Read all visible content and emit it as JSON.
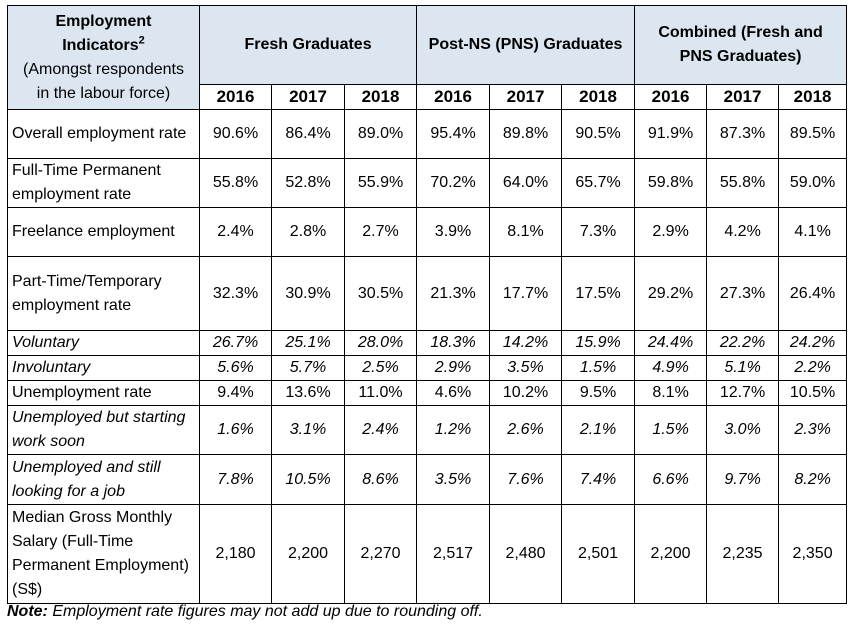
{
  "header": {
    "indicator_title": "Employment Indicators",
    "indicator_sup": "2",
    "indicator_sub_1": "(Amongst respondents",
    "indicator_sub_2": "in the labour force)",
    "groups": [
      "Fresh Graduates",
      "Post-NS (PNS) Graduates",
      "Combined (Fresh and PNS Graduates)"
    ],
    "years": [
      "2016",
      "2017",
      "2018",
      "2016",
      "2017",
      "2018",
      "2016",
      "2017",
      "2018"
    ]
  },
  "rows": [
    {
      "label": "Overall employment rate",
      "italic": false,
      "values": [
        "90.6%",
        "86.4%",
        "89.0%",
        "95.4%",
        "89.8%",
        "90.5%",
        "91.9%",
        "87.3%",
        "89.5%"
      ]
    },
    {
      "label": "Full-Time Permanent employment rate",
      "italic": false,
      "values": [
        "55.8%",
        "52.8%",
        "55.9%",
        "70.2%",
        "64.0%",
        "65.7%",
        "59.8%",
        "55.8%",
        "59.0%"
      ]
    },
    {
      "label": "Freelance employment",
      "italic": false,
      "values": [
        "2.4%",
        "2.8%",
        "2.7%",
        "3.9%",
        "8.1%",
        "7.3%",
        "2.9%",
        "4.2%",
        "4.1%"
      ]
    },
    {
      "label": "Part-Time/Temporary employment rate",
      "italic": false,
      "values": [
        "32.3%",
        "30.9%",
        "30.5%",
        "21.3%",
        "17.7%",
        "17.5%",
        "29.2%",
        "27.3%",
        "26.4%"
      ]
    },
    {
      "label": "Voluntary",
      "italic": true,
      "values": [
        "26.7%",
        "25.1%",
        "28.0%",
        "18.3%",
        "14.2%",
        "15.9%",
        "24.4%",
        "22.2%",
        "24.2%"
      ]
    },
    {
      "label": "Involuntary",
      "italic": true,
      "values": [
        "5.6%",
        "5.7%",
        "2.5%",
        "2.9%",
        "3.5%",
        "1.5%",
        "4.9%",
        "5.1%",
        "2.2%"
      ]
    },
    {
      "label": "Unemployment rate",
      "italic": false,
      "values": [
        "9.4%",
        "13.6%",
        "11.0%",
        "4.6%",
        "10.2%",
        "9.5%",
        "8.1%",
        "12.7%",
        "10.5%"
      ]
    },
    {
      "label": "Unemployed but starting work soon",
      "italic": true,
      "values": [
        "1.6%",
        "3.1%",
        "2.4%",
        "1.2%",
        "2.6%",
        "2.1%",
        "1.5%",
        "3.0%",
        "2.3%"
      ]
    },
    {
      "label": "Unemployed and still looking for a job",
      "italic": true,
      "values": [
        "7.8%",
        "10.5%",
        "8.6%",
        "3.5%",
        "7.6%",
        "7.4%",
        "6.6%",
        "9.7%",
        "8.2%"
      ]
    },
    {
      "label": "Median Gross Monthly Salary (Full-Time Permanent Employment) (S$)",
      "italic": false,
      "values": [
        "2,180",
        "2,200",
        "2,270",
        "2,517",
        "2,480",
        "2,501",
        "2,200",
        "2,235",
        "2,350"
      ]
    }
  ],
  "note": {
    "label": "Note:",
    "text": "Employment rate figures may not add up due to rounding off."
  },
  "colors": {
    "header_bg": "#dce6f1"
  }
}
